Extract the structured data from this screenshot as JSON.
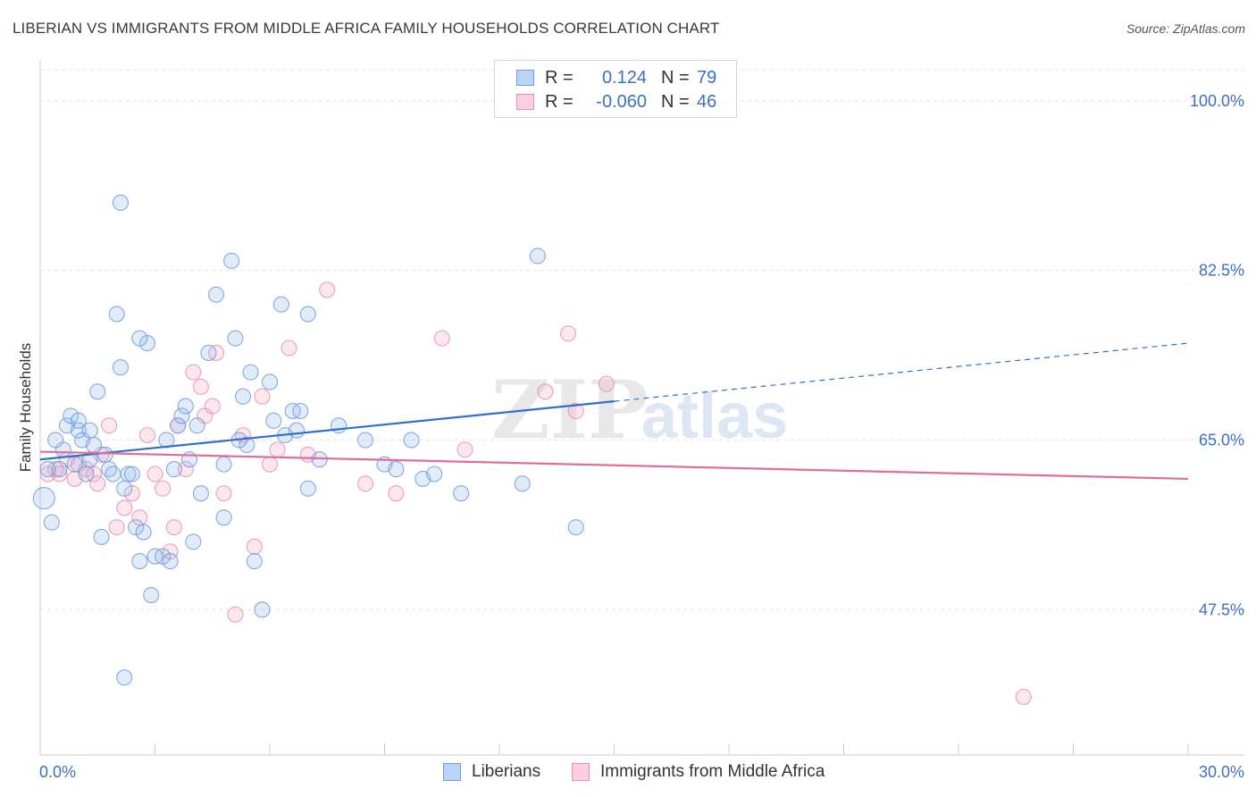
{
  "title": "LIBERIAN VS IMMIGRANTS FROM MIDDLE AFRICA FAMILY HOUSEHOLDS CORRELATION CHART",
  "source": "Source: ZipAtlas.com",
  "watermark": {
    "zip": "ZIP",
    "atlas": "atlas"
  },
  "legend": {
    "series1": {
      "r_label": "R =",
      "r_value": "0.124",
      "n_label": "N =",
      "n_value": "79"
    },
    "series2": {
      "r_label": "R =",
      "r_value": "-0.060",
      "n_label": "N =",
      "n_value": "46"
    }
  },
  "bottom_legend": {
    "series1": "Liberians",
    "series2": "Immigrants from Middle Africa"
  },
  "chart_data": {
    "type": "scatter",
    "title": "LIBERIAN VS IMMIGRANTS FROM MIDDLE AFRICA FAMILY HOUSEHOLDS CORRELATION CHART",
    "ylabel": "Family Households",
    "xlabel": "",
    "xlim": [
      0,
      30
    ],
    "ylim": [
      32.5,
      103.5
    ],
    "x_tick_labels": [
      "0.0%",
      "30.0%"
    ],
    "y_ticks": [
      47.5,
      65.0,
      82.5,
      100.0
    ],
    "y_tick_labels": [
      "47.5%",
      "65.0%",
      "82.5%",
      "100.0%"
    ],
    "grid": true,
    "colors": {
      "series1": "#6f9be0",
      "series2": "#e88fae",
      "trend1": "#2f6fd0",
      "trend2": "#e06e98",
      "axis_text": "#3d6fc4"
    },
    "series": [
      {
        "name": "Liberians",
        "trend": {
          "x0": 0,
          "y0": 63.0,
          "x1": 15.0,
          "y1": 69.0,
          "x_dash_end": 30.0,
          "y_dash_end": 75.0
        },
        "points": [
          [
            0.1,
            59.0
          ],
          [
            0.3,
            56.5
          ],
          [
            0.5,
            62.0
          ],
          [
            0.6,
            64.0
          ],
          [
            0.7,
            66.5
          ],
          [
            0.8,
            67.5
          ],
          [
            0.9,
            62.5
          ],
          [
            1.0,
            66.0
          ],
          [
            1.1,
            65.0
          ],
          [
            1.2,
            61.5
          ],
          [
            1.3,
            63.0
          ],
          [
            1.4,
            64.5
          ],
          [
            1.5,
            70.0
          ],
          [
            1.6,
            55.0
          ],
          [
            1.8,
            62.0
          ],
          [
            1.9,
            61.5
          ],
          [
            2.0,
            78.0
          ],
          [
            2.1,
            72.5
          ],
          [
            2.3,
            61.5
          ],
          [
            2.5,
            56.0
          ],
          [
            2.6,
            52.5
          ],
          [
            2.7,
            55.5
          ],
          [
            2.8,
            75.0
          ],
          [
            2.9,
            49.0
          ],
          [
            2.1,
            89.5
          ],
          [
            2.2,
            40.5
          ],
          [
            2.4,
            61.5
          ],
          [
            2.2,
            60.0
          ],
          [
            3.0,
            53.0
          ],
          [
            3.2,
            53.0
          ],
          [
            3.4,
            52.5
          ],
          [
            3.5,
            62.0
          ],
          [
            3.6,
            66.5
          ],
          [
            3.7,
            67.5
          ],
          [
            3.9,
            63.0
          ],
          [
            4.0,
            54.5
          ],
          [
            4.2,
            59.5
          ],
          [
            4.4,
            74.0
          ],
          [
            4.6,
            80.0
          ],
          [
            4.8,
            62.5
          ],
          [
            5.0,
            83.5
          ],
          [
            5.1,
            75.5
          ],
          [
            5.3,
            69.5
          ],
          [
            5.4,
            64.5
          ],
          [
            5.5,
            72.0
          ],
          [
            5.6,
            52.5
          ],
          [
            5.8,
            47.5
          ],
          [
            6.0,
            71.0
          ],
          [
            6.1,
            67.0
          ],
          [
            6.3,
            79.0
          ],
          [
            6.4,
            65.5
          ],
          [
            6.6,
            68.0
          ],
          [
            6.7,
            66.0
          ],
          [
            5.2,
            65.0
          ],
          [
            7.0,
            78.0
          ],
          [
            7.0,
            60.0
          ],
          [
            7.3,
            63.0
          ],
          [
            7.8,
            66.5
          ],
          [
            8.5,
            65.0
          ],
          [
            9.0,
            62.5
          ],
          [
            9.3,
            62.0
          ],
          [
            9.7,
            65.0
          ],
          [
            10.0,
            61.0
          ],
          [
            10.3,
            61.5
          ],
          [
            11.0,
            59.5
          ],
          [
            12.6,
            60.5
          ],
          [
            13.0,
            84.0
          ],
          [
            14.0,
            56.0
          ],
          [
            3.8,
            68.5
          ],
          [
            4.1,
            66.5
          ],
          [
            0.4,
            65.0
          ],
          [
            1.7,
            63.5
          ],
          [
            2.6,
            75.5
          ],
          [
            0.2,
            62.0
          ],
          [
            1.3,
            66.0
          ],
          [
            4.8,
            57.0
          ],
          [
            6.8,
            68.0
          ],
          [
            1.0,
            67.0
          ],
          [
            3.3,
            65.0
          ]
        ]
      },
      {
        "name": "Immigrants from Middle Africa",
        "trend": {
          "x0": 0,
          "y0": 63.8,
          "x1": 30.0,
          "y1": 61.0
        },
        "points": [
          [
            0.2,
            61.5
          ],
          [
            0.4,
            62.0
          ],
          [
            0.5,
            61.5
          ],
          [
            0.7,
            63.0
          ],
          [
            0.9,
            61.0
          ],
          [
            1.0,
            62.5
          ],
          [
            1.2,
            62.0
          ],
          [
            1.4,
            61.5
          ],
          [
            1.5,
            60.5
          ],
          [
            1.6,
            63.5
          ],
          [
            1.8,
            66.5
          ],
          [
            2.0,
            56.0
          ],
          [
            2.2,
            58.0
          ],
          [
            2.4,
            59.5
          ],
          [
            2.6,
            57.0
          ],
          [
            2.8,
            65.5
          ],
          [
            3.0,
            61.5
          ],
          [
            3.2,
            60.0
          ],
          [
            3.4,
            53.5
          ],
          [
            3.5,
            56.0
          ],
          [
            3.6,
            66.5
          ],
          [
            3.8,
            62.0
          ],
          [
            4.0,
            72.0
          ],
          [
            4.2,
            70.5
          ],
          [
            4.3,
            67.5
          ],
          [
            4.5,
            68.5
          ],
          [
            4.6,
            74.0
          ],
          [
            4.8,
            59.5
          ],
          [
            5.1,
            47.0
          ],
          [
            5.3,
            65.5
          ],
          [
            5.6,
            54.0
          ],
          [
            5.8,
            69.5
          ],
          [
            6.0,
            62.5
          ],
          [
            6.2,
            64.0
          ],
          [
            6.5,
            74.5
          ],
          [
            7.0,
            63.5
          ],
          [
            7.5,
            80.5
          ],
          [
            8.5,
            60.5
          ],
          [
            9.3,
            59.5
          ],
          [
            10.5,
            75.5
          ],
          [
            11.1,
            64.0
          ],
          [
            13.2,
            70.0
          ],
          [
            13.8,
            76.0
          ],
          [
            14.0,
            68.0
          ],
          [
            14.8,
            70.8
          ],
          [
            25.7,
            38.5
          ]
        ]
      }
    ]
  }
}
